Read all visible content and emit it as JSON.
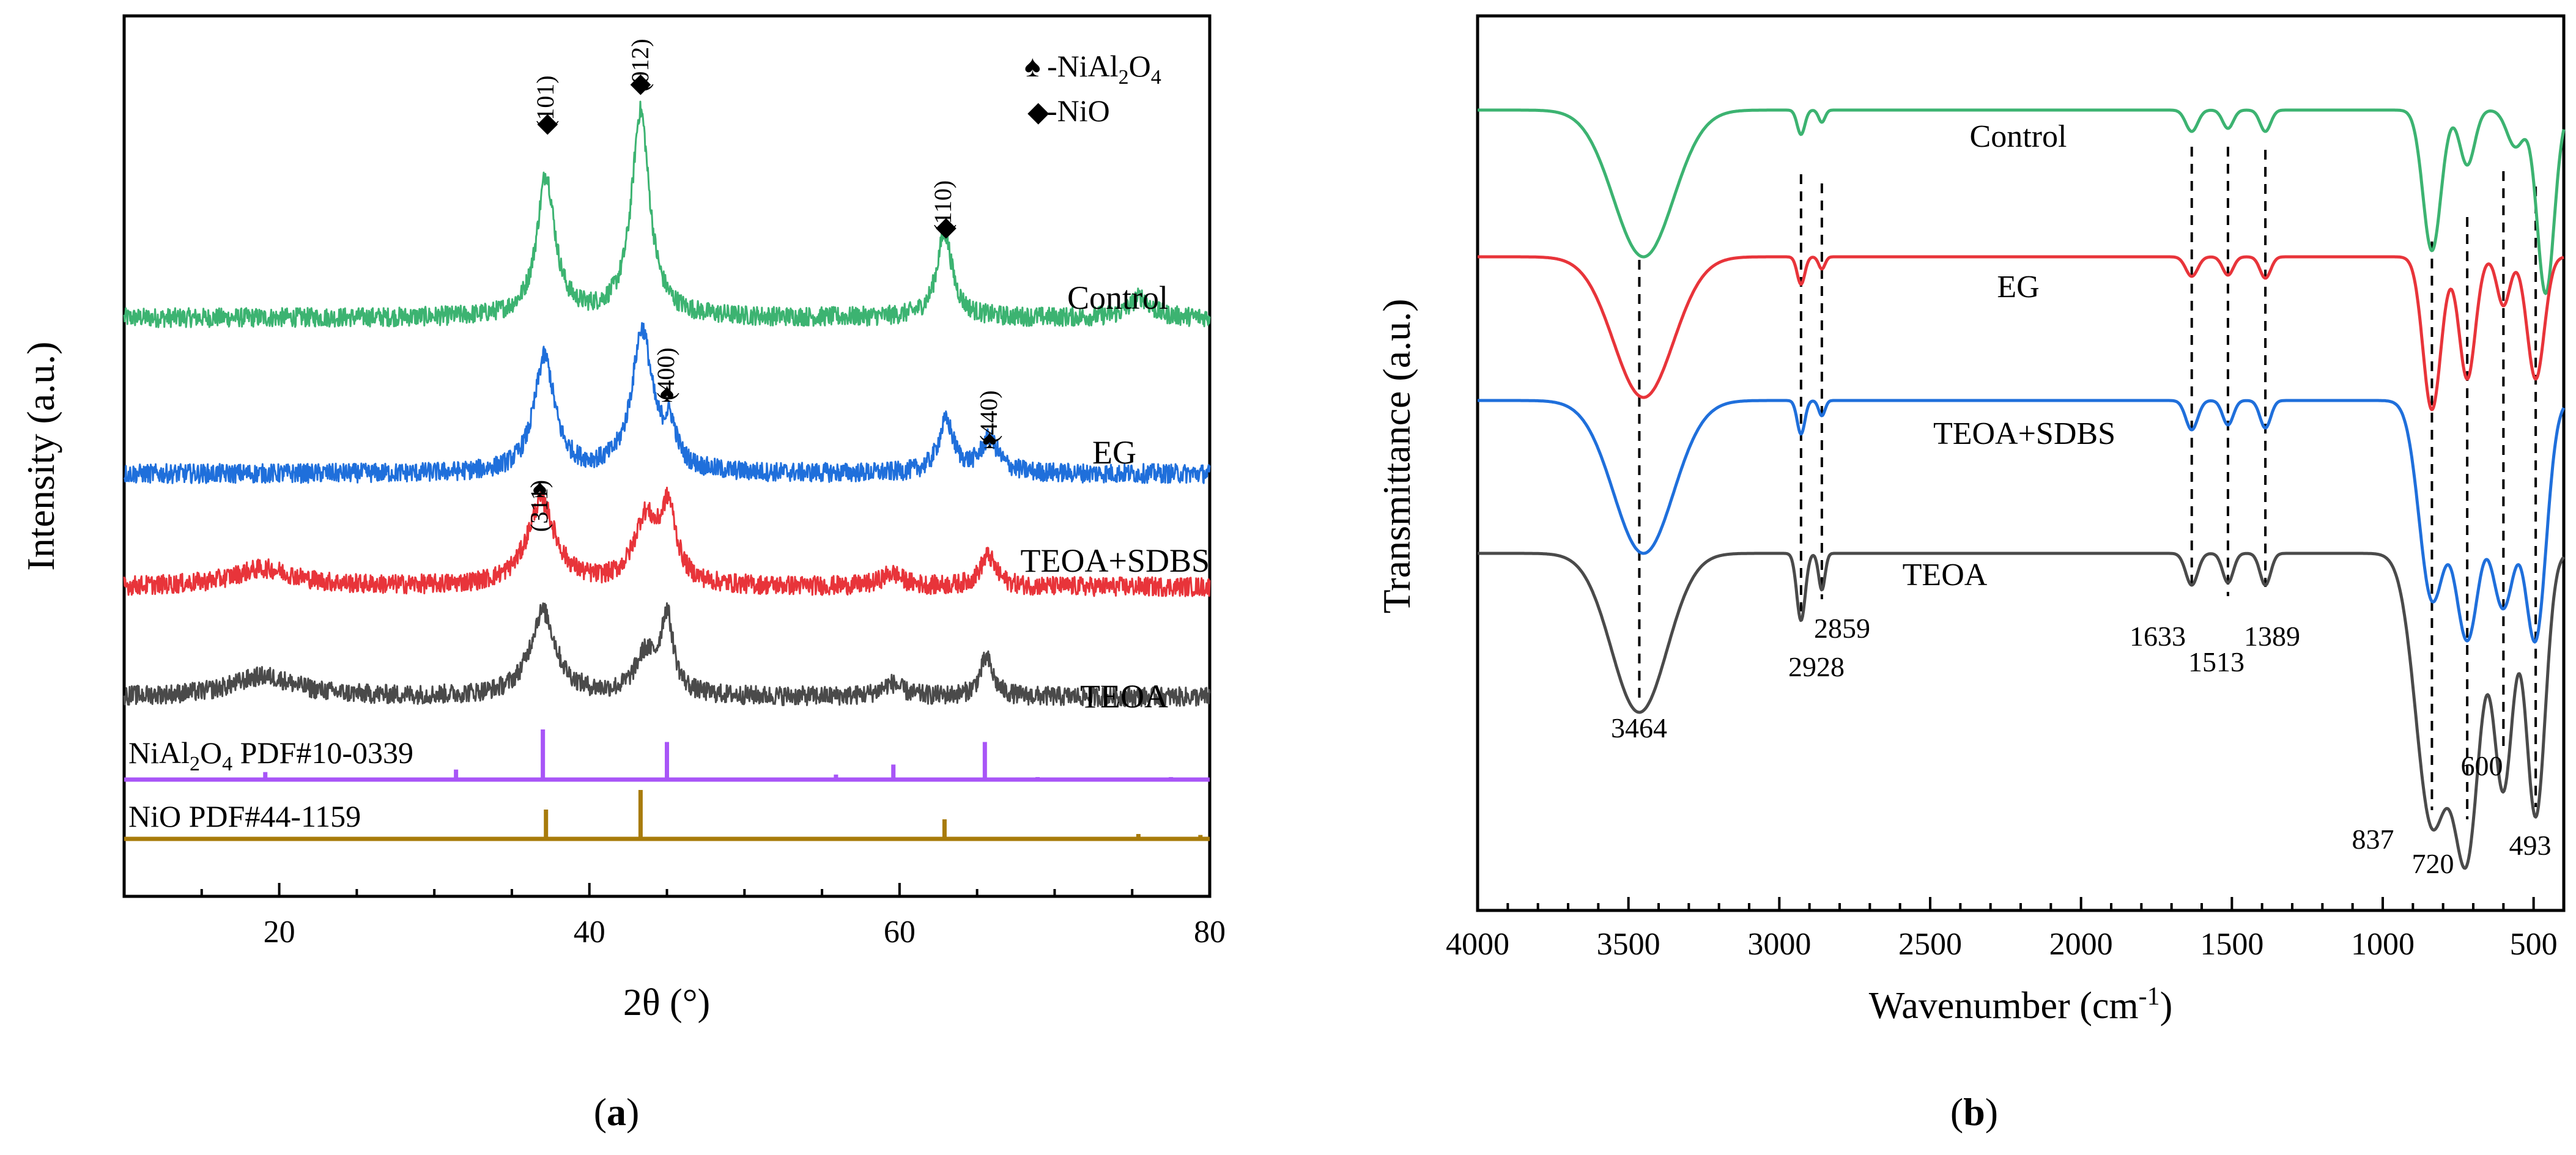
{
  "panel_labels": {
    "a": "a",
    "b": "b"
  },
  "chart_data": [
    {
      "type": "line",
      "panel": "a",
      "title": "",
      "xlabel": "2θ (°)",
      "ylabel": "Intensity (a.u.)",
      "xlim": [
        10,
        80
      ],
      "xticks": [
        20,
        40,
        60,
        80
      ],
      "grid": false,
      "legend": {
        "entries": [
          {
            "symbol": "♠",
            "label": "-NiAl2O4",
            "base": "-NiAl",
            "sub1": "2",
            "mid": "O",
            "sub2": "4"
          },
          {
            "symbol": "◆",
            "label": "-NiO"
          }
        ],
        "position": "top-right"
      },
      "series": [
        {
          "name": "Control",
          "color": "#3CB371",
          "peaks": [
            [
              37.2,
              0.55,
              0.7
            ],
            [
              43.3,
              0.8,
              0.7
            ],
            [
              62.9,
              0.33,
              0.6
            ],
            [
              75.5,
              0.08,
              0.8
            ]
          ]
        },
        {
          "name": "EG",
          "color": "#1F6FDB",
          "peaks": [
            [
              37.1,
              0.45,
              0.8
            ],
            [
              43.4,
              0.55,
              0.8
            ],
            [
              45.2,
              0.15,
              0.5
            ],
            [
              63.0,
              0.2,
              0.6
            ],
            [
              65.8,
              0.13,
              0.7
            ]
          ]
        },
        {
          "name": "TEOA+SDBS",
          "color": "#E8343A",
          "peaks": [
            [
              36.9,
              0.33,
              1.1
            ],
            [
              43.6,
              0.25,
              0.9
            ],
            [
              45.1,
              0.28,
              0.6
            ],
            [
              59.5,
              0.05,
              0.8
            ],
            [
              65.7,
              0.12,
              0.6
            ],
            [
              19.0,
              0.07,
              2.5
            ]
          ]
        },
        {
          "name": "TEOA",
          "color": "#4A4A4A",
          "peaks": [
            [
              37.0,
              0.33,
              1.0
            ],
            [
              43.6,
              0.15,
              0.8
            ],
            [
              45.0,
              0.3,
              0.5
            ],
            [
              59.5,
              0.05,
              0.8
            ],
            [
              65.6,
              0.15,
              0.5
            ],
            [
              19.0,
              0.08,
              2.5
            ]
          ]
        }
      ],
      "reference_patterns": [
        {
          "name": "NiAl2O4 PDF#10-0339",
          "label_base": "NiAl",
          "label_sub1": "2",
          "label_mid": "O",
          "label_sub2": "4",
          "label_rest": " PDF#10-0339",
          "color": "#A855F7",
          "lines": [
            [
              19.1,
              0.15
            ],
            [
              31.4,
              0.2
            ],
            [
              37.0,
              1.0
            ],
            [
              45.0,
              0.75
            ],
            [
              55.9,
              0.1
            ],
            [
              59.6,
              0.3
            ],
            [
              65.5,
              0.75
            ],
            [
              68.9,
              0.05
            ],
            [
              77.5,
              0.05
            ]
          ]
        },
        {
          "name": "NiO PDF#44-1159",
          "color": "#A87B0A",
          "lines": [
            [
              37.2,
              0.6
            ],
            [
              43.3,
              1.0
            ],
            [
              62.9,
              0.4
            ],
            [
              75.4,
              0.1
            ],
            [
              79.4,
              0.08
            ]
          ]
        }
      ],
      "annotations": [
        {
          "text": "(101)",
          "x": 37.3,
          "series": "Control",
          "marker": "◆"
        },
        {
          "text": "(012)",
          "x": 43.3,
          "series": "Control",
          "marker": "◆"
        },
        {
          "text": "(110)",
          "x": 63.0,
          "series": "Control",
          "marker": "◆"
        },
        {
          "text": "(400)",
          "x": 45.0,
          "series": "EG",
          "marker": "♠"
        },
        {
          "text": "(440)",
          "x": 65.8,
          "series": "EG",
          "marker": "♠"
        },
        {
          "text": "(311)",
          "x": 36.8,
          "series": "TEOA+SDBS",
          "marker": "♠"
        }
      ]
    },
    {
      "type": "line",
      "panel": "b",
      "title": "",
      "xlabel": "Wavenumber (cm-1)",
      "xlabel_base": "Wavenumber (cm",
      "xlabel_sup": "-1",
      "xlabel_end": ")",
      "ylabel": "Transmittance (a.u.)",
      "xlim": [
        4000,
        400
      ],
      "xticks": [
        4000,
        3500,
        3000,
        2500,
        2000,
        1500,
        1000,
        500
      ],
      "grid": false,
      "series": [
        {
          "name": "Control",
          "color": "#3CB371"
        },
        {
          "name": "EG",
          "color": "#E8343A"
        },
        {
          "name": "TEOA+SDBS",
          "color": "#1F6FDB"
        },
        {
          "name": "TEOA",
          "color": "#4A4A4A"
        }
      ],
      "band_labels": [
        "3464",
        "2928",
        "2859",
        "1633",
        "1513",
        "1389",
        "837",
        "720",
        "600",
        "493"
      ],
      "dashed_lines": [
        3464,
        2928,
        2859,
        1633,
        1513,
        1389,
        837,
        720,
        600,
        493
      ]
    }
  ]
}
